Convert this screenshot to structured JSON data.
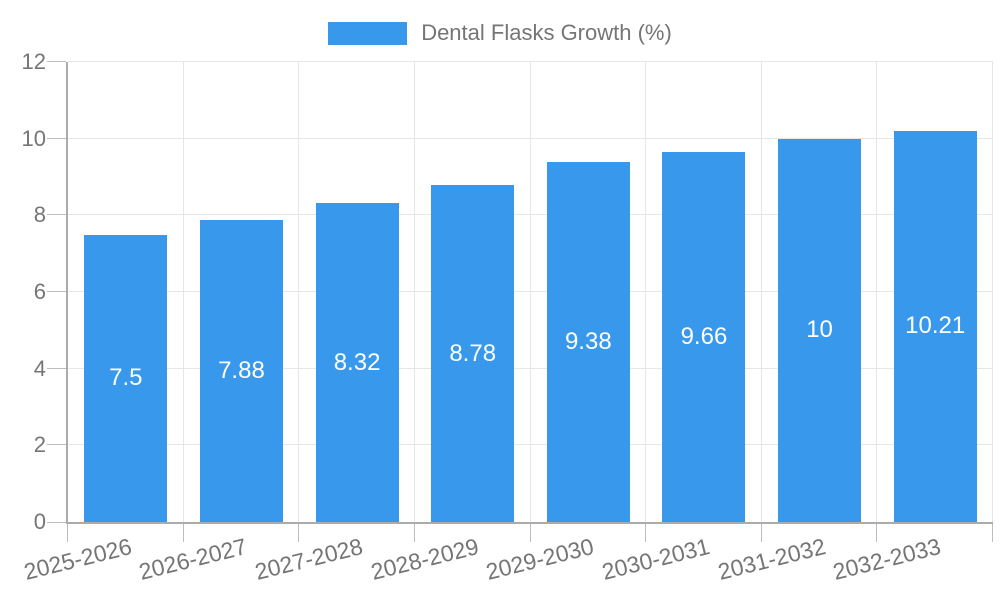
{
  "chart_data": {
    "type": "bar",
    "series_name": "Dental Flasks Growth (%)",
    "legend_position": "top",
    "grid": true,
    "categories": [
      "2025-2026",
      "2026-2027",
      "2027-2028",
      "2028-2029",
      "2029-2030",
      "2030-2031",
      "2031-2032",
      "2032-2033"
    ],
    "values": [
      7.5,
      7.88,
      8.32,
      8.78,
      9.38,
      9.66,
      10,
      10.21
    ],
    "value_labels": [
      "7.5",
      "7.88",
      "8.32",
      "8.78",
      "9.38",
      "9.66",
      "10",
      "10.21"
    ],
    "xlabel": "",
    "ylabel": "",
    "ylim": [
      0,
      12
    ],
    "yticks": [
      0,
      2,
      4,
      6,
      8,
      10,
      12
    ],
    "colors": {
      "bar": "#3899ec",
      "grid": "#e6e6e6",
      "axis": "#ababab",
      "tick": "#bdbdbd",
      "label_text": "#757575",
      "value_text": "#ffffff",
      "background": "#ffffff"
    }
  }
}
